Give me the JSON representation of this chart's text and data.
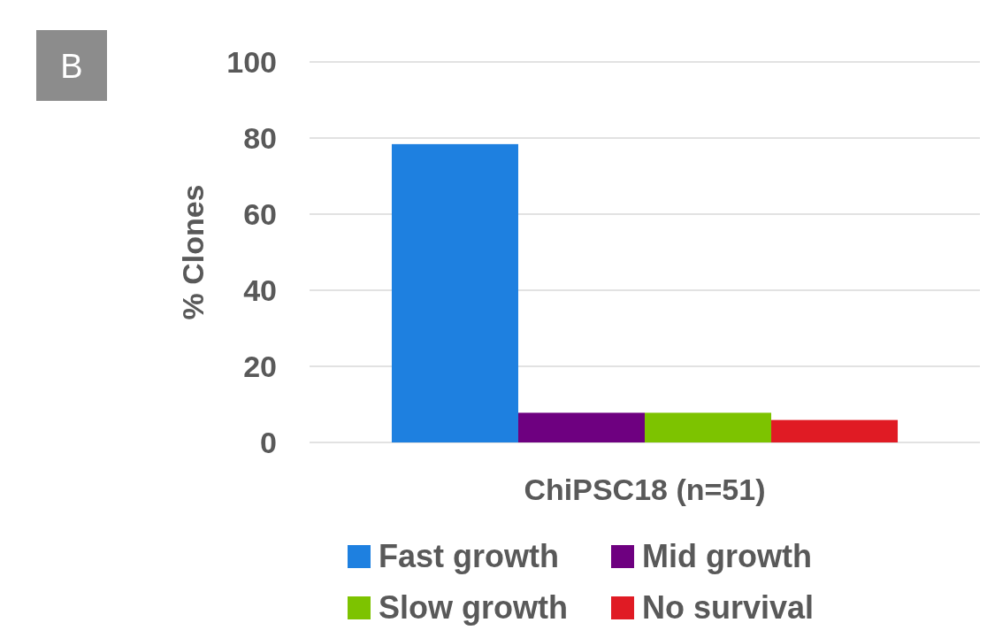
{
  "chart_data": {
    "type": "bar",
    "categories": [
      "ChiPSC18 (n=51)"
    ],
    "ylabel": "% Clones",
    "annotations": [
      "B"
    ],
    "series": [
      {
        "name": "Fast growth",
        "color": "#1e80e0",
        "values": [
          78.4
        ]
      },
      {
        "name": "Mid growth",
        "color": "#6e0080",
        "values": [
          7.8
        ]
      },
      {
        "name": "Slow growth",
        "color": "#7dc300",
        "values": [
          7.8
        ]
      },
      {
        "name": "No survival",
        "color": "#e01b24",
        "values": [
          5.9
        ]
      }
    ],
    "ylim": [
      0,
      100
    ],
    "yticks": [
      0,
      20,
      40,
      60,
      80,
      100
    ],
    "grid": "y",
    "legend": "bottom"
  }
}
